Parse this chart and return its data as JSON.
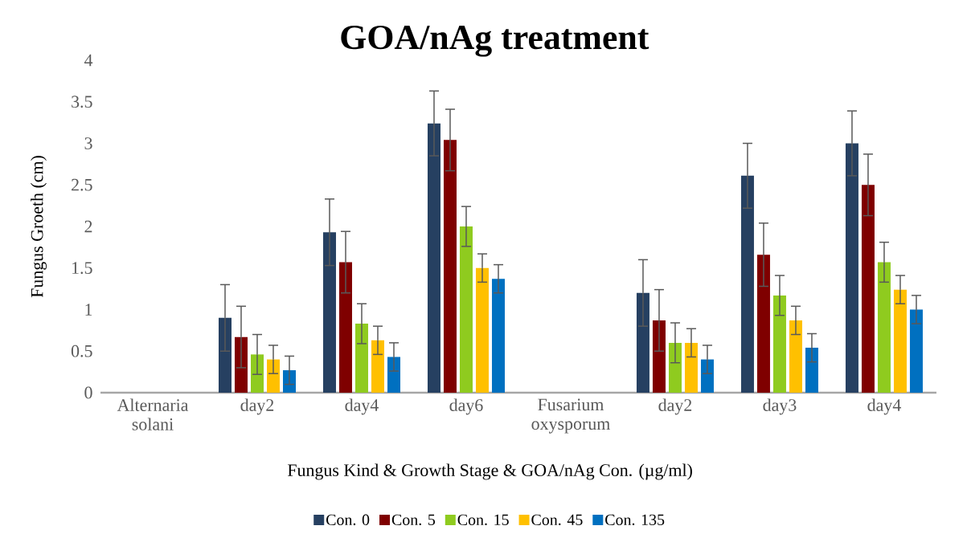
{
  "chart_data": {
    "type": "bar",
    "title": "GOA/nAg treatment",
    "xlabel": "Fungus Kind & Growth Stage & GOA/nAg Con. (µg/ml)",
    "ylabel": "Fungus Groeth (cm)",
    "categories": [
      "Alternaria solani",
      "day2",
      "day4",
      "day6",
      "Fusarium oxysporum",
      "day2",
      "day3",
      "day4"
    ],
    "series": [
      {
        "name": "Con. 0",
        "color": "#264061",
        "values": [
          null,
          0.9,
          1.93,
          3.24,
          null,
          1.2,
          2.61,
          3.0
        ],
        "errors": [
          null,
          0.4,
          0.4,
          0.39,
          null,
          0.4,
          0.39,
          0.39
        ]
      },
      {
        "name": "Con. 5",
        "color": "#7f0000",
        "values": [
          null,
          0.67,
          1.57,
          3.04,
          null,
          0.87,
          1.66,
          2.5
        ],
        "errors": [
          null,
          0.37,
          0.37,
          0.37,
          null,
          0.37,
          0.38,
          0.37
        ]
      },
      {
        "name": "Con. 15",
        "color": "#8fcb1f",
        "values": [
          null,
          0.46,
          0.83,
          2.0,
          null,
          0.6,
          1.17,
          1.57
        ],
        "errors": [
          null,
          0.24,
          0.24,
          0.24,
          null,
          0.24,
          0.24,
          0.24
        ]
      },
      {
        "name": "Con. 45",
        "color": "#ffc000",
        "values": [
          null,
          0.4,
          0.63,
          1.5,
          null,
          0.6,
          0.87,
          1.24
        ],
        "errors": [
          null,
          0.17,
          0.17,
          0.17,
          null,
          0.17,
          0.17,
          0.17
        ]
      },
      {
        "name": "Con. 135",
        "color": "#0070c0",
        "values": [
          null,
          0.27,
          0.43,
          1.37,
          null,
          0.4,
          0.54,
          1.0
        ],
        "errors": [
          null,
          0.17,
          0.17,
          0.17,
          null,
          0.17,
          0.17,
          0.17
        ]
      }
    ],
    "ylim": [
      0,
      4
    ],
    "yticks": [
      0,
      0.5,
      1,
      1.5,
      2,
      2.5,
      3,
      3.5,
      4
    ],
    "legend": "bottom"
  }
}
